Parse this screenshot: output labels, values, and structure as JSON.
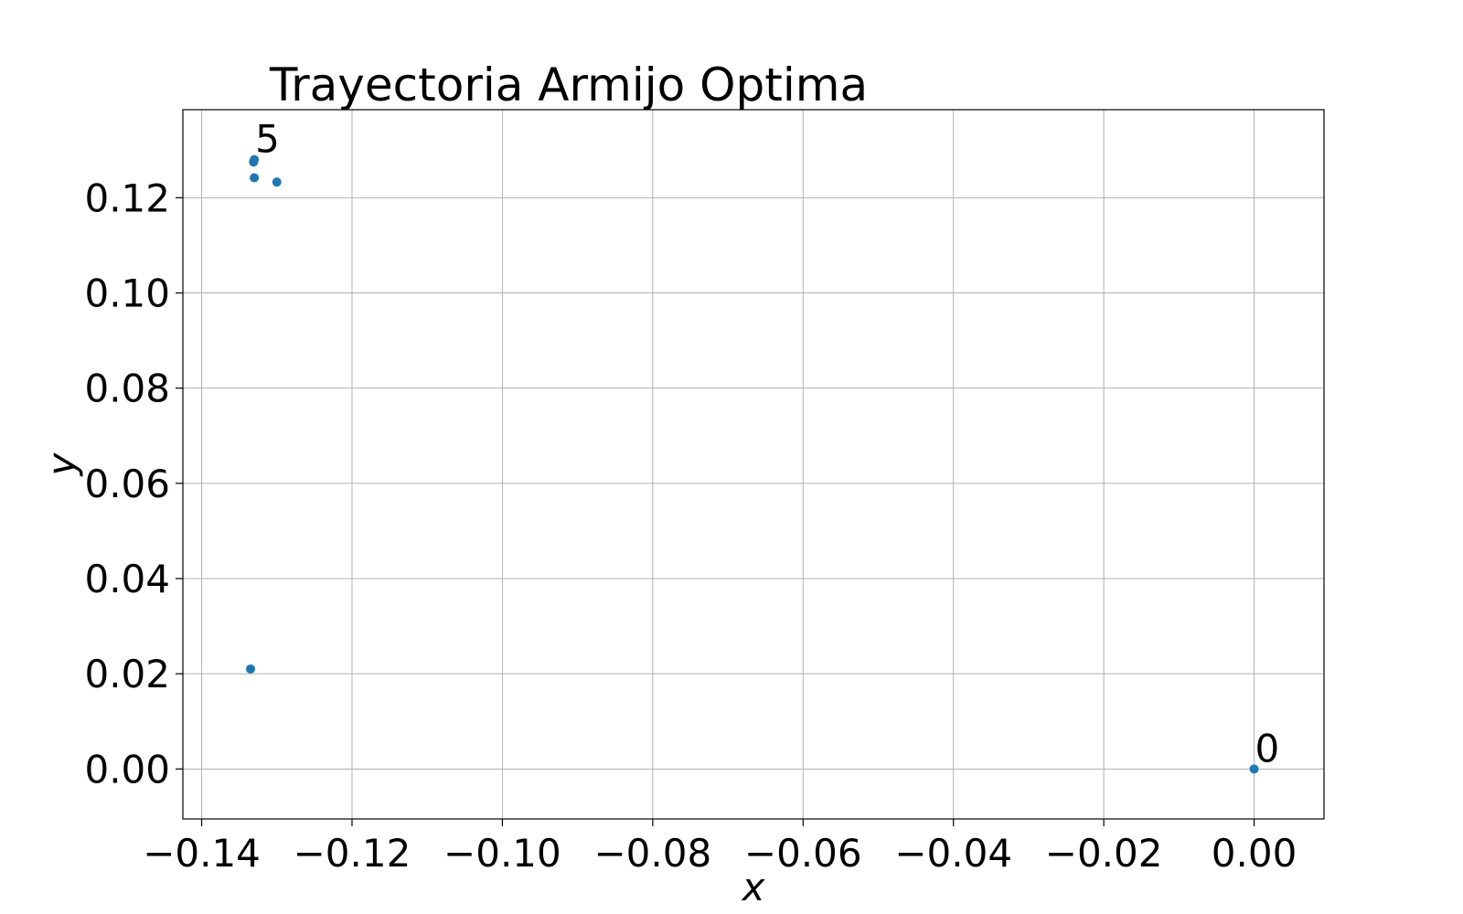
{
  "chart_data": {
    "type": "scatter",
    "title": "Trayectoria Armijo Optima",
    "xlabel": "x",
    "ylabel": "y",
    "xlim": [
      -0.1425,
      0.0093
    ],
    "ylim": [
      -0.0105,
      0.1385
    ],
    "grid": true,
    "x_ticks": [
      -0.14,
      -0.12,
      -0.1,
      -0.08,
      -0.06,
      -0.04,
      -0.02,
      0.0
    ],
    "x_tick_labels": [
      "−0.14",
      "−0.12",
      "−0.10",
      "−0.08",
      "−0.06",
      "−0.04",
      "−0.02",
      "0.00"
    ],
    "y_ticks": [
      0.0,
      0.02,
      0.04,
      0.06,
      0.08,
      0.1,
      0.12
    ],
    "y_tick_labels": [
      "0.00",
      "0.02",
      "0.04",
      "0.06",
      "0.08",
      "0.10",
      "0.12"
    ],
    "series": [
      {
        "color": "#1f77b4",
        "points": [
          {
            "x": 0.0,
            "y": 0.0,
            "label": "0"
          },
          {
            "x": -0.1335,
            "y": 0.021
          },
          {
            "x": -0.13,
            "y": 0.1233
          },
          {
            "x": -0.133,
            "y": 0.1242
          },
          {
            "x": -0.1331,
            "y": 0.1275
          },
          {
            "x": -0.133,
            "y": 0.128,
            "label": "5"
          }
        ]
      }
    ]
  }
}
